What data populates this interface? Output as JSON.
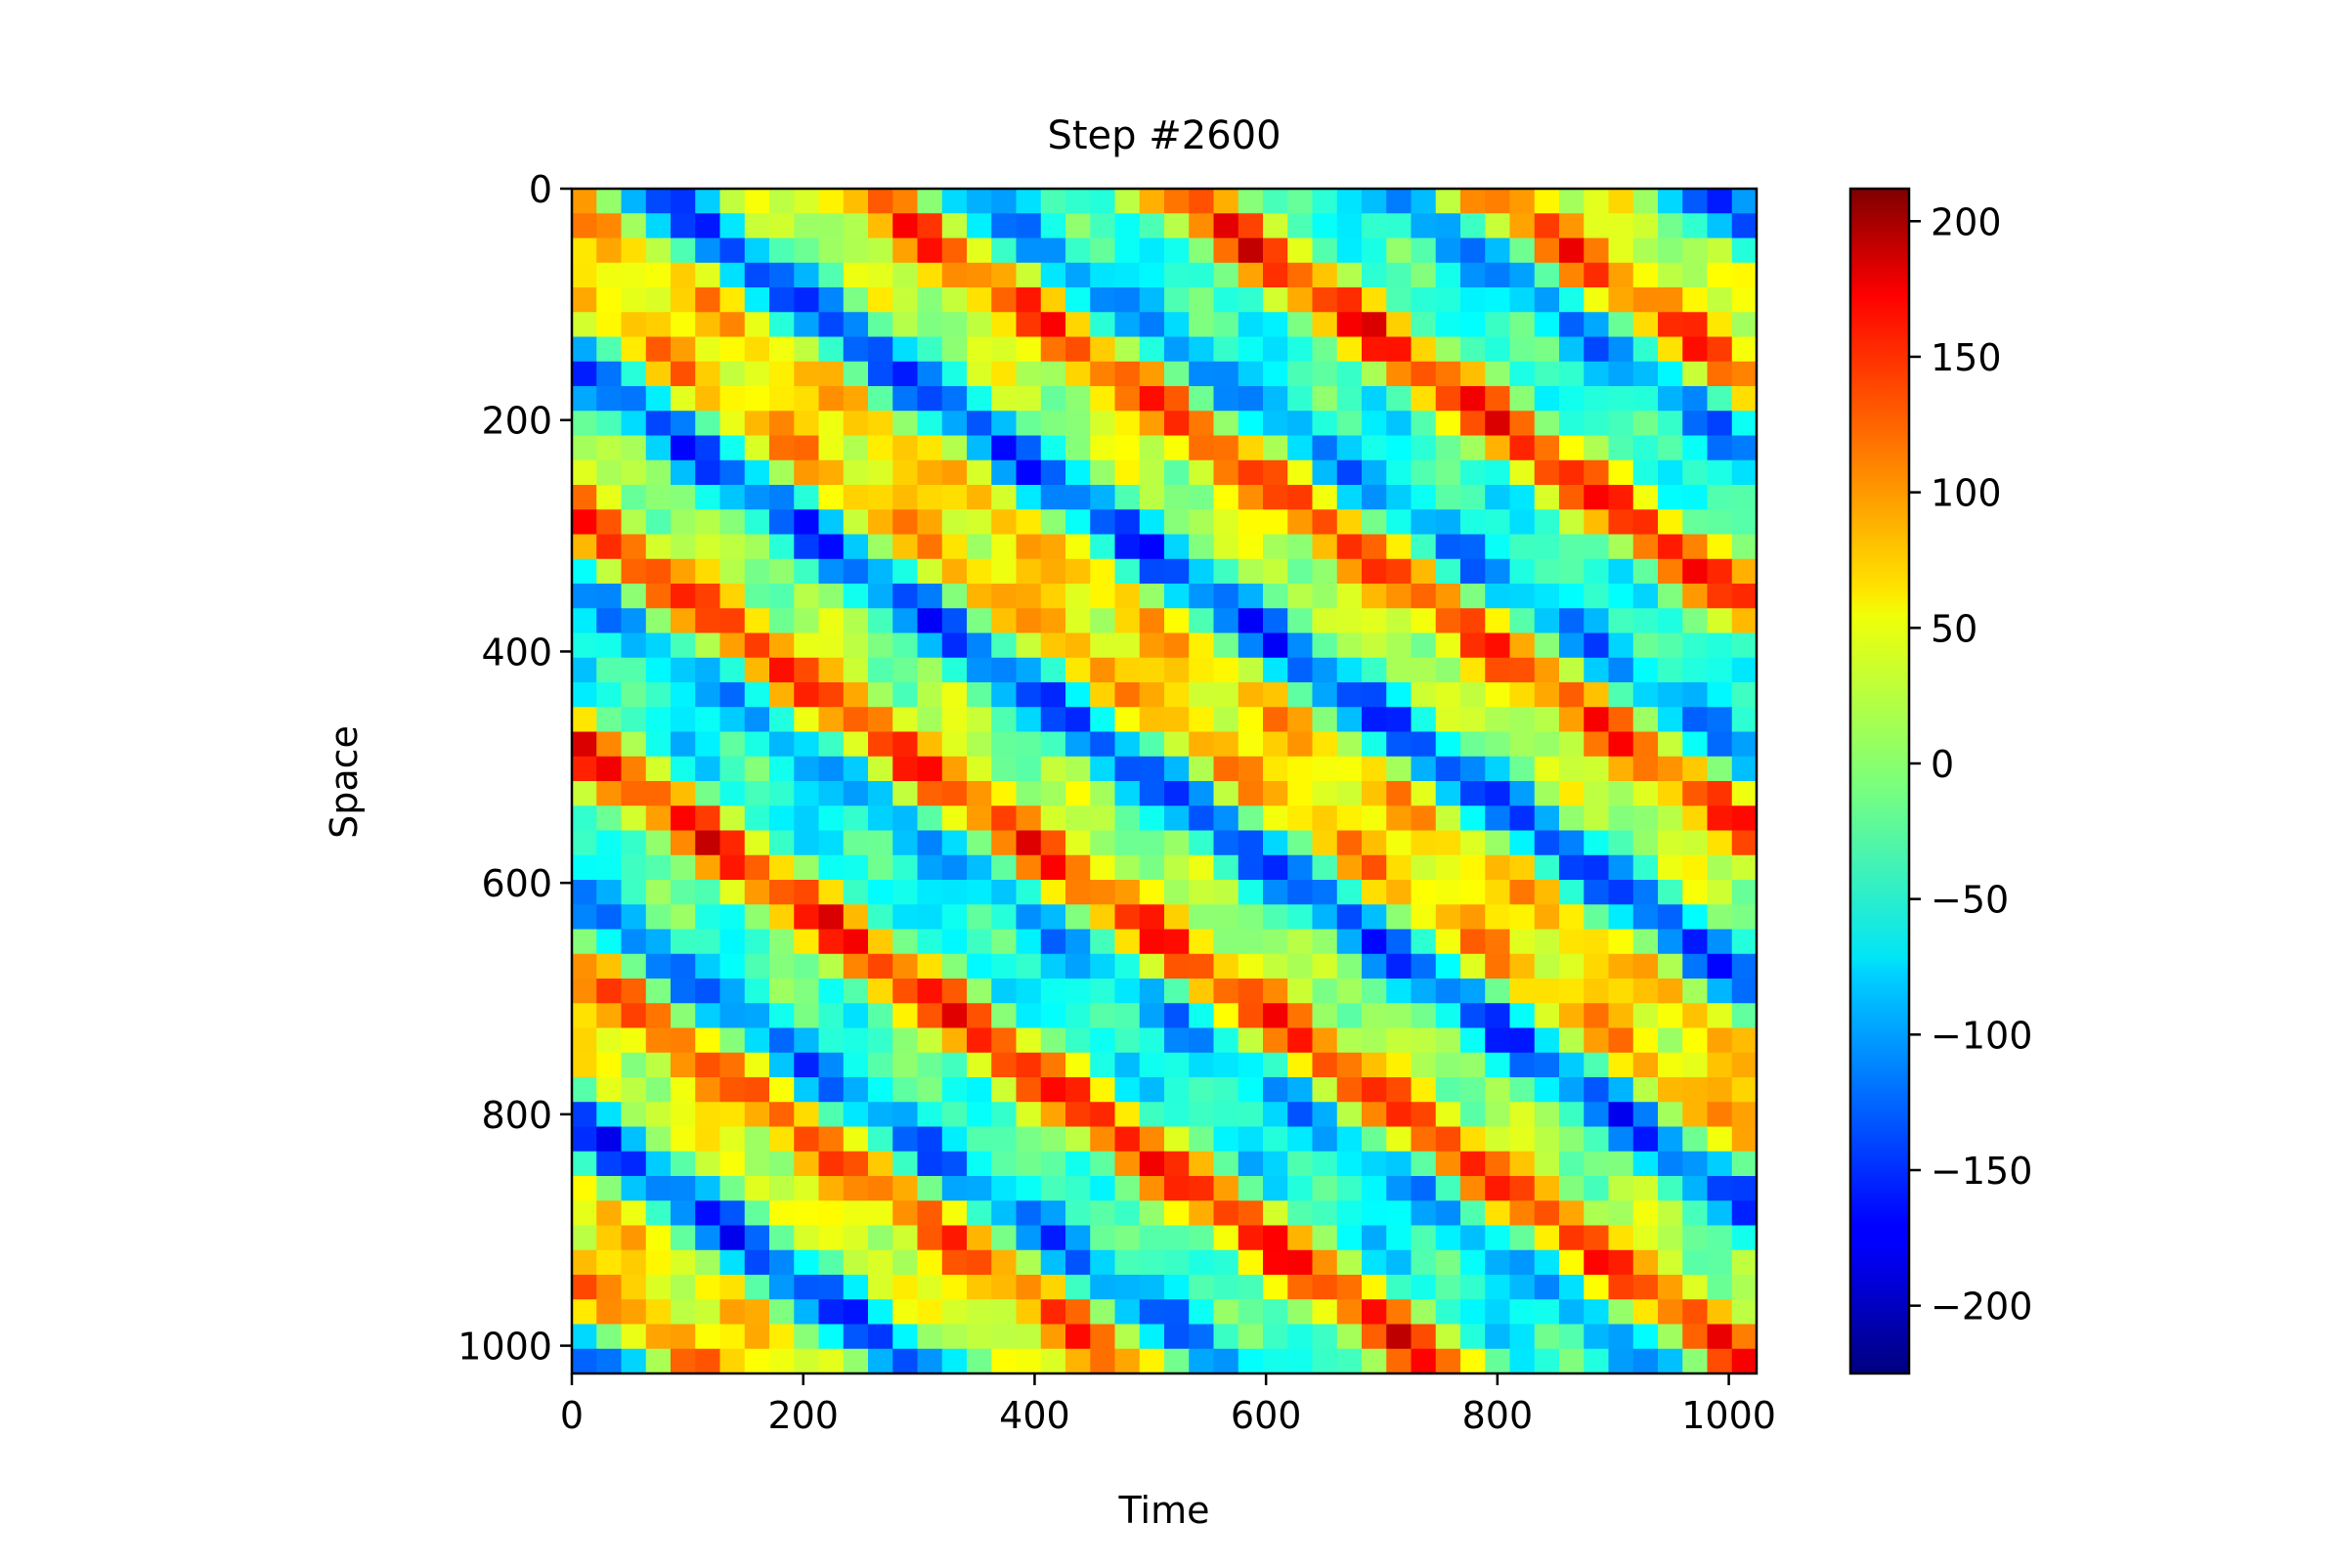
{
  "chart_data": {
    "type": "heatmap",
    "title": "Step #2600",
    "xlabel": "Time",
    "ylabel": "Space",
    "xlim": [
      0,
      1024
    ],
    "ylim": [
      1024,
      0
    ],
    "x_ticks": [
      0,
      200,
      400,
      600,
      800,
      1000
    ],
    "y_ticks": [
      0,
      200,
      400,
      600,
      800,
      1000
    ],
    "colormap": "jet",
    "colorbar": {
      "range": [
        -225,
        212
      ],
      "ticks": [
        200,
        150,
        100,
        50,
        0,
        -50,
        -100,
        -150,
        -200
      ],
      "tick_labels": [
        "200",
        "150",
        "100",
        "50",
        "0",
        "−50",
        "−100",
        "−150",
        "−200"
      ]
    },
    "pattern": {
      "description_free": true,
      "stripe_orientation": "diagonal-down-right",
      "grid": [
        48,
        48
      ]
    }
  }
}
